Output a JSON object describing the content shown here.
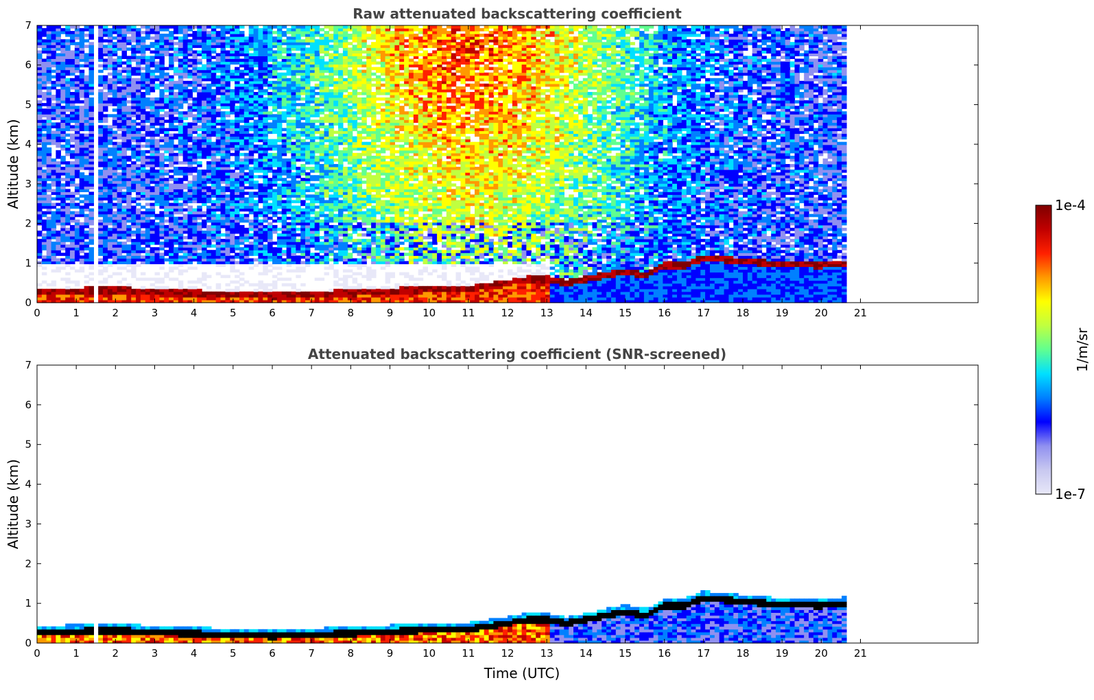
{
  "chart_data": [
    {
      "type": "heatmap",
      "title": "Raw attenuated backscattering coefficient",
      "xlabel": "",
      "ylabel": "Altitude (km)",
      "xlim": [
        0,
        24
      ],
      "ylim": [
        0,
        7
      ],
      "xticks": [
        "0",
        "1",
        "2",
        "3",
        "4",
        "5",
        "6",
        "7",
        "8",
        "9",
        "10",
        "11",
        "12",
        "13",
        "14",
        "15",
        "16",
        "17",
        "18",
        "19",
        "20",
        "21"
      ],
      "yticks": [
        "0",
        "1",
        "2",
        "3",
        "4",
        "5",
        "6",
        "7"
      ],
      "data_end_time": 20.6,
      "data_gap": [
        1.45,
        1.55
      ],
      "boundary_layer_top": [
        [
          0,
          0.28
        ],
        [
          2,
          0.32
        ],
        [
          4,
          0.24
        ],
        [
          6,
          0.18
        ],
        [
          8,
          0.25
        ],
        [
          10,
          0.34
        ],
        [
          11,
          0.36
        ],
        [
          12,
          0.5
        ],
        [
          12.5,
          0.6
        ],
        [
          13,
          0.6
        ],
        [
          13.5,
          0.5
        ],
        [
          14,
          0.6
        ],
        [
          14.5,
          0.7
        ],
        [
          15,
          0.8
        ],
        [
          15.5,
          0.7
        ],
        [
          16,
          0.95
        ],
        [
          16.5,
          0.95
        ],
        [
          17,
          1.15
        ],
        [
          18,
          1.05
        ],
        [
          19,
          0.97
        ],
        [
          20,
          0.95
        ],
        [
          20.6,
          1.0
        ]
      ],
      "screened": false
    },
    {
      "type": "heatmap",
      "title": "Attenuated backscattering coefficient (SNR-screened)",
      "xlabel": "Time (UTC)",
      "ylabel": "Altitude (km)",
      "xlim": [
        0,
        24
      ],
      "ylim": [
        0,
        7
      ],
      "xticks": [
        "0",
        "1",
        "2",
        "3",
        "4",
        "5",
        "6",
        "7",
        "8",
        "9",
        "10",
        "11",
        "12",
        "13",
        "14",
        "15",
        "16",
        "17",
        "18",
        "19",
        "20",
        "21"
      ],
      "yticks": [
        "0",
        "1",
        "2",
        "3",
        "4",
        "5",
        "6",
        "7"
      ],
      "data_end_time": 20.6,
      "data_gap": [
        1.45,
        1.55
      ],
      "boundary_layer_top": [
        [
          0,
          0.28
        ],
        [
          2,
          0.32
        ],
        [
          4,
          0.24
        ],
        [
          6,
          0.18
        ],
        [
          8,
          0.25
        ],
        [
          10,
          0.34
        ],
        [
          11,
          0.36
        ],
        [
          12,
          0.5
        ],
        [
          12.5,
          0.6
        ],
        [
          13,
          0.6
        ],
        [
          13.5,
          0.5
        ],
        [
          14,
          0.6
        ],
        [
          14.5,
          0.7
        ],
        [
          15,
          0.8
        ],
        [
          15.5,
          0.7
        ],
        [
          16,
          0.95
        ],
        [
          16.5,
          0.95
        ],
        [
          17,
          1.15
        ],
        [
          18,
          1.05
        ],
        [
          19,
          0.97
        ],
        [
          20,
          0.95
        ],
        [
          20.6,
          1.0
        ]
      ],
      "screened": true
    }
  ],
  "colorbar": {
    "max_label": "1e-4",
    "min_label": "1e-7",
    "unit_label": "1/m/sr",
    "colormap": "jet",
    "colors": [
      "#e8e8f8",
      "#c8c8f0",
      "#9090f0",
      "#0000ff",
      "#0080ff",
      "#00e0ff",
      "#60ff90",
      "#c0ff40",
      "#ffff00",
      "#ff9900",
      "#ff2000",
      "#c00000",
      "#7f0000"
    ]
  }
}
